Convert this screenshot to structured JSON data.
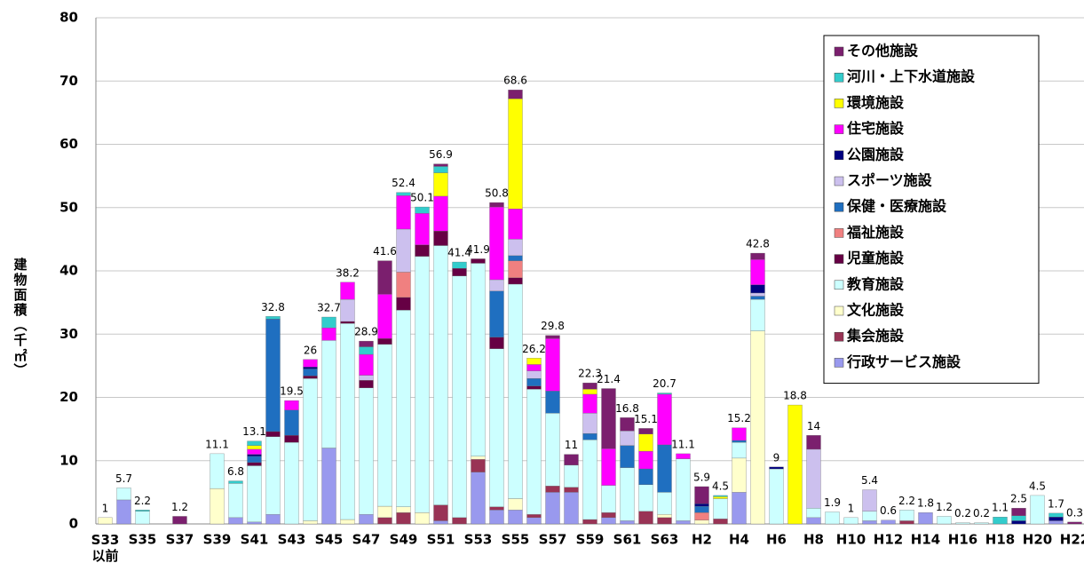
{
  "chart_data": {
    "type": "stacked-bar",
    "y_label": "建物面積（千㎡）",
    "categories": [
      "S33\n以前",
      null,
      "S35",
      null,
      "S37",
      null,
      "S39",
      null,
      "S41",
      null,
      "S43",
      null,
      "S45",
      null,
      "S47",
      null,
      "S49",
      null,
      "S51",
      null,
      "S53",
      null,
      "S55",
      null,
      "S57",
      null,
      "S59",
      null,
      "S61",
      null,
      "S63",
      null,
      "H2",
      null,
      "H4",
      null,
      "H6",
      null,
      "H8",
      null,
      "H10",
      null,
      "H12",
      null,
      "H14",
      null,
      "H16",
      null,
      "H18",
      null,
      "H20",
      null,
      "H22"
    ],
    "totals": [
      1.0,
      5.7,
      2.2,
      null,
      1.2,
      null,
      11.1,
      6.8,
      13.1,
      32.8,
      19.5,
      26.0,
      32.7,
      38.2,
      28.9,
      41.6,
      52.4,
      50.1,
      56.9,
      41.4,
      41.9,
      50.8,
      68.6,
      26.2,
      29.8,
      11.0,
      22.3,
      21.4,
      16.8,
      15.1,
      20.7,
      11.1,
      5.9,
      4.5,
      15.2,
      42.8,
      9.0,
      18.8,
      14.0,
      1.9,
      1.0,
      5.4,
      0.6,
      2.2,
      1.8,
      1.2,
      0.2,
      0.2,
      1.1,
      2.5,
      4.5,
      1.7,
      0.3
    ],
    "series": [
      {
        "name": "その他施設",
        "color": "#7b1f6e",
        "values": [
          0,
          0,
          0,
          0,
          1.2,
          0,
          0,
          0,
          0,
          0,
          0,
          0,
          0,
          0,
          0.9,
          5.3,
          0,
          0,
          0.4,
          0,
          0,
          0.7,
          1.4,
          0,
          0.5,
          1.7,
          1.0,
          9.5,
          2.1,
          0.9,
          0,
          0,
          2.7,
          0,
          0,
          1.0,
          0,
          0,
          2.2,
          0,
          0,
          0,
          0,
          0,
          0,
          0,
          0,
          0,
          0,
          1.2,
          0,
          0,
          0.3
        ]
      },
      {
        "name": "河川・上下水道施設",
        "color": "#33cccc",
        "values": [
          0,
          0,
          0.2,
          0,
          0,
          0,
          0,
          0.4,
          0.7,
          0.4,
          0,
          0,
          1.7,
          0,
          1.2,
          0,
          0.5,
          1.0,
          1.0,
          1.0,
          0,
          0,
          0,
          0,
          0,
          0,
          0,
          0,
          0,
          0,
          0.2,
          0,
          0,
          0.2,
          0,
          0,
          0,
          0,
          0,
          0,
          0,
          0,
          0,
          0,
          0,
          0,
          0,
          0,
          1.1,
          0.8,
          0,
          0.6,
          0
        ]
      },
      {
        "name": "環境施設",
        "color": "#ffff00",
        "values": [
          0,
          0,
          0,
          0,
          0,
          0,
          0,
          0,
          0.6,
          0,
          0,
          0,
          0,
          0,
          0,
          0,
          0,
          0,
          3.7,
          0,
          0,
          0,
          17.4,
          1.0,
          0,
          0,
          0.8,
          0,
          0,
          2.7,
          0,
          0,
          0,
          0.3,
          0,
          0,
          0,
          18.8,
          0,
          0,
          0,
          0,
          0,
          0,
          0,
          0,
          0,
          0,
          0,
          0,
          0,
          0,
          0
        ]
      },
      {
        "name": "住宅施設",
        "color": "#ff00ff",
        "values": [
          0,
          0,
          0,
          0,
          0,
          0,
          0,
          0,
          0.8,
          0,
          1.5,
          1.2,
          2.0,
          2.7,
          3.3,
          7.0,
          5.3,
          5.0,
          5.5,
          0,
          0,
          11.5,
          4.8,
          1.0,
          8.3,
          0,
          3.0,
          5.8,
          0,
          2.8,
          8.0,
          0.8,
          0,
          0,
          2.0,
          4.0,
          0,
          0,
          0,
          0,
          0,
          0,
          0,
          0,
          0,
          0,
          0,
          0,
          0,
          0,
          0,
          0,
          0
        ]
      },
      {
        "name": "公園施設",
        "color": "#000080",
        "values": [
          0,
          0,
          0,
          0,
          0,
          0,
          0,
          0,
          0.3,
          0,
          0,
          0.3,
          0,
          0,
          0,
          0,
          0,
          0,
          0,
          0,
          0,
          0,
          0,
          0,
          0,
          0,
          0,
          0,
          0,
          0,
          0,
          0,
          0.4,
          0,
          0,
          1.3,
          0.3,
          0,
          0,
          0,
          0,
          0,
          0,
          0,
          0,
          0,
          0,
          0,
          0,
          0.5,
          0,
          0.6,
          0
        ]
      },
      {
        "name": "スポーツ施設",
        "color": "#ccc0ee",
        "values": [
          0,
          0,
          0,
          0,
          0,
          0,
          0,
          0,
          0,
          0,
          0,
          0,
          0,
          3.5,
          0.8,
          0,
          6.8,
          0,
          0,
          0,
          0,
          1.8,
          2.6,
          1.2,
          0,
          0,
          3.2,
          0,
          2.3,
          0,
          0,
          0,
          0,
          0,
          0,
          0.5,
          0,
          0,
          9.3,
          0,
          0,
          3.4,
          0,
          0,
          0,
          0,
          0,
          0,
          0,
          0,
          0,
          0,
          0
        ]
      },
      {
        "name": "保健・医療施設",
        "color": "#1f6fc0",
        "values": [
          0,
          0,
          0,
          0,
          0,
          0,
          0,
          0,
          1.0,
          17.8,
          4.0,
          1.1,
          0,
          0,
          0,
          0,
          0,
          0,
          0,
          0,
          0,
          7.3,
          0.8,
          1.2,
          3.5,
          0,
          1.0,
          0,
          3.5,
          2.5,
          7.5,
          0,
          1.0,
          0,
          0.3,
          0.5,
          0,
          0,
          0,
          0,
          0,
          0,
          0,
          0,
          0,
          0,
          0,
          0,
          0,
          0,
          0,
          0,
          0
        ]
      },
      {
        "name": "福祉施設",
        "color": "#f08080",
        "values": [
          0,
          0,
          0,
          0,
          0,
          0,
          0,
          0,
          0,
          0,
          0,
          0,
          0,
          0,
          0,
          0,
          4.0,
          0,
          0,
          0,
          0,
          0,
          2.7,
          0,
          0,
          0,
          0,
          0,
          0,
          0,
          0,
          0,
          1.2,
          0,
          0,
          0,
          0,
          0,
          0,
          0,
          0,
          0,
          0,
          0,
          0,
          0,
          0,
          0,
          0,
          0,
          0,
          0,
          0
        ]
      },
      {
        "name": "児童施設",
        "color": "#660044",
        "values": [
          0,
          0,
          0,
          0,
          0,
          0,
          0,
          0,
          0.5,
          0.8,
          1.1,
          0.4,
          0,
          0.3,
          1.2,
          0.9,
          2.0,
          1.8,
          2.3,
          1.2,
          0.7,
          1.8,
          1.0,
          0.5,
          0,
          0,
          0,
          0,
          0,
          0,
          0,
          0,
          0,
          0,
          0,
          0,
          0,
          0,
          0,
          0,
          0,
          0,
          0,
          0,
          0,
          0,
          0,
          0,
          0,
          0,
          0,
          0,
          0
        ]
      },
      {
        "name": "教育施設",
        "color": "#ccffff",
        "values": [
          0,
          1.9,
          2.0,
          0,
          0,
          0,
          5.5,
          5.4,
          8.9,
          12.3,
          12.9,
          22.5,
          17.0,
          31.0,
          20.0,
          25.6,
          31.1,
          40.5,
          41.0,
          38.2,
          30.5,
          25.0,
          33.9,
          19.8,
          11.5,
          3.5,
          12.6,
          4.3,
          8.4,
          4.2,
          3.5,
          9.8,
          0,
          3.2,
          2.5,
          5.0,
          8.7,
          0,
          1.5,
          1.9,
          1.0,
          1.5,
          0,
          1.7,
          0,
          1.2,
          0.2,
          0.2,
          0,
          0,
          4.5,
          0,
          0
        ]
      },
      {
        "name": "文化施設",
        "color": "#ffffcc",
        "values": [
          1.0,
          0,
          0,
          0,
          0,
          0,
          5.6,
          0,
          0,
          0,
          0,
          0.5,
          0,
          0.7,
          0,
          1.8,
          0.9,
          1.8,
          0,
          0,
          0.5,
          0,
          1.8,
          0,
          0,
          0,
          0,
          0,
          0,
          0,
          0.5,
          0,
          0.6,
          0,
          5.4,
          30.5,
          0,
          0,
          0,
          0,
          0,
          0,
          0,
          0,
          0,
          0,
          0,
          0,
          0,
          0,
          0,
          0,
          0
        ]
      },
      {
        "name": "集会施設",
        "color": "#993355",
        "values": [
          0,
          0,
          0,
          0,
          0,
          0,
          0,
          0,
          0,
          0,
          0,
          0,
          0,
          0,
          0,
          1.0,
          1.8,
          0,
          2.5,
          1.0,
          2.0,
          0.5,
          0,
          0.5,
          1.0,
          0.8,
          0.7,
          0.8,
          0,
          2.0,
          1.0,
          0,
          0,
          0.8,
          0,
          0,
          0,
          0,
          0,
          0,
          0,
          0,
          0,
          0.5,
          0,
          0,
          0,
          0,
          0,
          0,
          0,
          0,
          0
        ]
      },
      {
        "name": "行政サービス施設",
        "color": "#9999ee",
        "values": [
          0,
          3.8,
          0,
          0,
          0,
          0,
          0,
          1.0,
          0.3,
          1.5,
          0,
          0,
          12.0,
          0,
          1.5,
          0,
          0,
          0,
          0.5,
          0,
          8.2,
          2.2,
          2.2,
          1.0,
          5.0,
          5.0,
          0,
          1.0,
          0.5,
          0,
          0,
          0.5,
          0,
          0,
          5.0,
          0,
          0,
          0,
          1.0,
          0,
          0,
          0.5,
          0.6,
          0,
          1.8,
          0,
          0,
          0,
          0,
          0,
          0,
          0.5,
          0
        ]
      }
    ],
    "ylim": [
      0,
      80
    ],
    "yticks": [
      0,
      10,
      20,
      30,
      40,
      50,
      60,
      70,
      80
    ],
    "grid": true,
    "legend": "upper right"
  }
}
